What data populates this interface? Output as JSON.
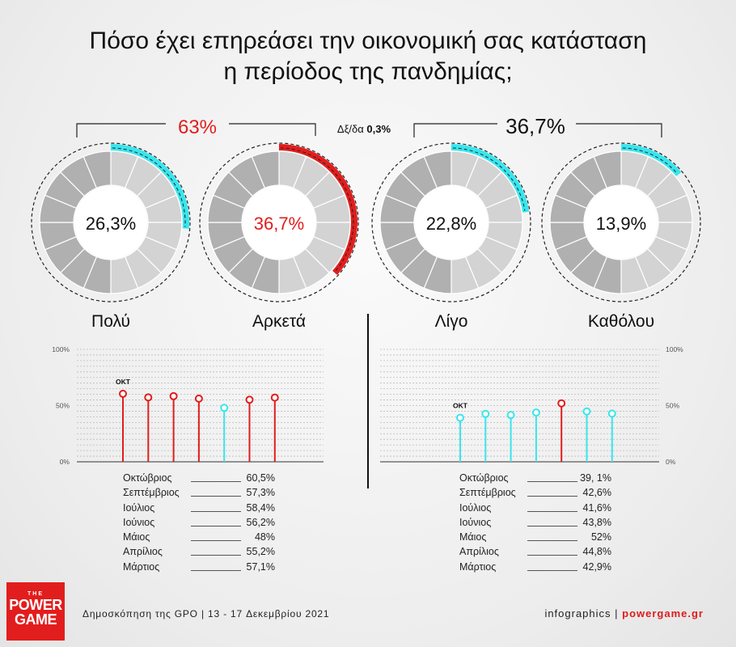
{
  "title": {
    "line1": "Πόσο έχει επηρεάσει την οικονομική σας κατάσταση",
    "line2": "η περίοδος της πανδημίας;"
  },
  "groups": {
    "left_total": "63%",
    "right_total": "36,7%",
    "dk_label": "Δξ/δα",
    "dk_value": "0,3%"
  },
  "colors": {
    "red": "#e21d1d",
    "cyan": "#37e6ee",
    "ring_dark": "#a9a9a9",
    "ring_light": "#cfcfcf"
  },
  "chart_data": [
    {
      "type": "pie",
      "categories": [
        "Πολύ",
        "Αρκετά",
        "Λίγο",
        "Καθόλου"
      ],
      "values": [
        26.3,
        36.7,
        22.8,
        13.9
      ],
      "value_labels": [
        "26,3%",
        "36,7%",
        "22,8%",
        "13,9%"
      ],
      "highlight_colors": [
        "#37e6ee",
        "#e21d1d",
        "#37e6ee",
        "#37e6ee"
      ]
    },
    {
      "type": "scatter",
      "series_label": "ΟΚΤ",
      "ylim": [
        0,
        100
      ],
      "yticks": [
        "100%",
        "50%",
        "0%"
      ],
      "values": [
        60.5,
        57.3,
        58.4,
        56.2,
        48,
        55.2,
        57.1
      ],
      "colors": [
        "#e21d1d",
        "#e21d1d",
        "#e21d1d",
        "#e21d1d",
        "#37e6ee",
        "#e21d1d",
        "#e21d1d"
      ],
      "table": [
        {
          "month": "Οκτώβριος",
          "value": "60,5%"
        },
        {
          "month": "Σεπτέμβριος",
          "value": "57,3%"
        },
        {
          "month": "Ιούλιος",
          "value": "58,4%"
        },
        {
          "month": "Ιούνιος",
          "value": "56,2%"
        },
        {
          "month": "Μάιος",
          "value": "48%"
        },
        {
          "month": "Απρίλιος",
          "value": "55,2%"
        },
        {
          "month": "Μάρτιος",
          "value": "57,1%"
        }
      ]
    },
    {
      "type": "scatter",
      "series_label": "ΟΚΤ",
      "ylim": [
        0,
        100
      ],
      "yticks": [
        "100%",
        "50%",
        "0%"
      ],
      "values": [
        39.1,
        42.6,
        41.6,
        43.8,
        52,
        44.8,
        42.9
      ],
      "colors": [
        "#37e6ee",
        "#37e6ee",
        "#37e6ee",
        "#37e6ee",
        "#e21d1d",
        "#37e6ee",
        "#37e6ee"
      ],
      "table": [
        {
          "month": "Οκτώβριος",
          "value": "39, 1%"
        },
        {
          "month": "Σεπτέμβριος",
          "value": "42,6%"
        },
        {
          "month": "Ιούλιος",
          "value": "41,6%"
        },
        {
          "month": "Ιούνιος",
          "value": "43,8%"
        },
        {
          "month": "Μάιος",
          "value": "52%"
        },
        {
          "month": "Απρίλιος",
          "value": "44,8%"
        },
        {
          "month": "Μάρτιος",
          "value": "42,9%"
        }
      ]
    }
  ],
  "footer": {
    "survey": "Δημοσκόπηση της GPO | 13 - 17 Δεκεμβρίου 2021",
    "credit": "infographics | ",
    "site": "powergame.gr"
  },
  "logo": {
    "the": "THE",
    "line1": "POWER",
    "line2": "GAME"
  }
}
